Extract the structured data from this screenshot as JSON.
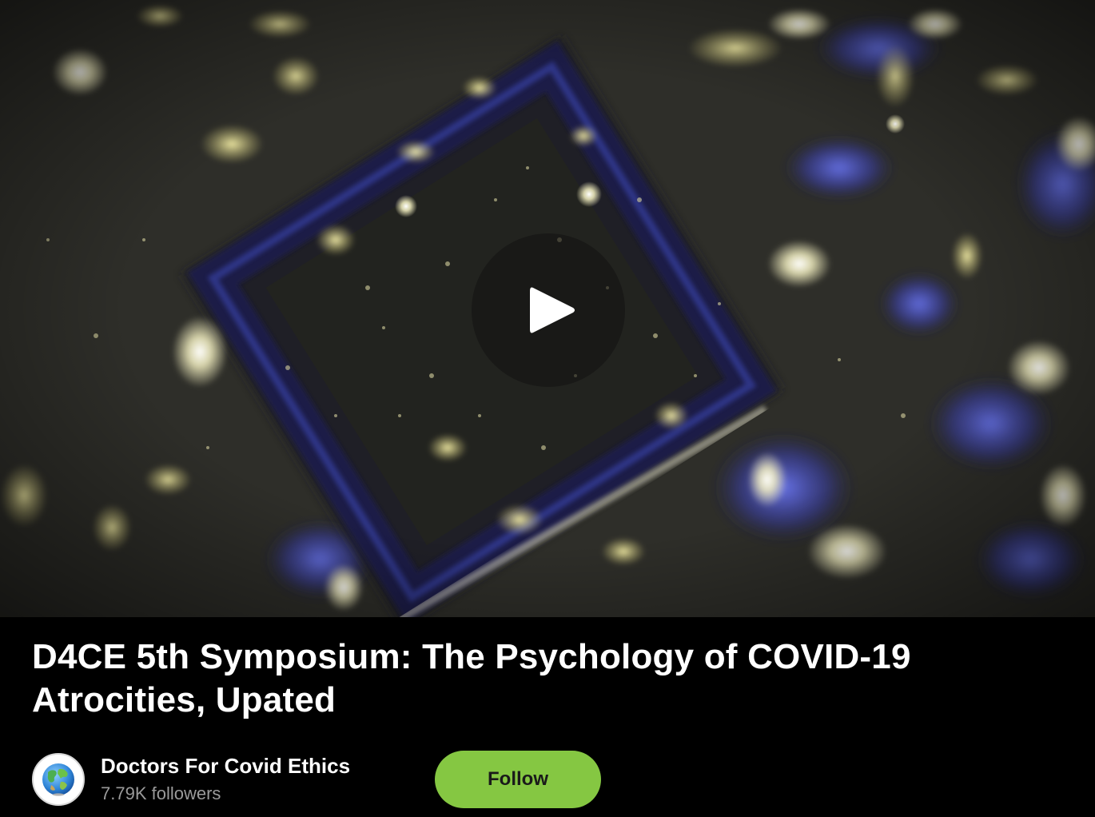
{
  "video": {
    "thumbnail_icon": "microscope-crystal-thumbnail",
    "play_icon": "play-icon"
  },
  "title": "D4CE 5th Symposium: The Psychology of COVID-19 Atrocities, Upated",
  "channel": {
    "name": "Doctors For Covid Ethics",
    "followers": "7.79K followers",
    "avatar_icon": "globe-icon"
  },
  "follow_button": {
    "label": "Follow"
  },
  "colors": {
    "background": "#000000",
    "accent": "#85c742",
    "text_primary": "#ffffff",
    "text_secondary": "#9a9a9a"
  }
}
